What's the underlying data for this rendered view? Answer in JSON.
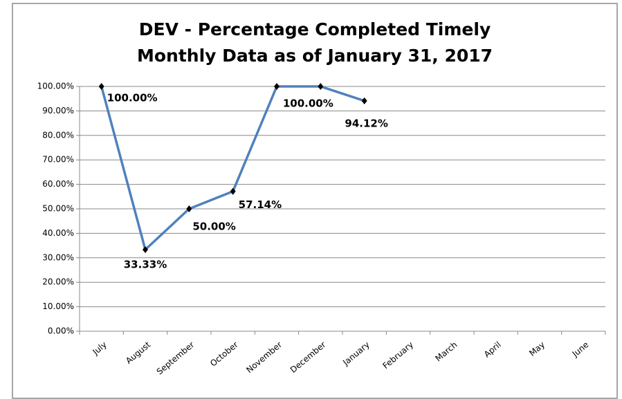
{
  "chart_data": {
    "type": "line",
    "title": "DEV - Percentage Completed Timely",
    "subtitle": "Monthly Data as of January 31, 2017",
    "categories": [
      "July",
      "August",
      "September",
      "October",
      "November",
      "December",
      "January",
      "February",
      "March",
      "April",
      "May",
      "June"
    ],
    "series": [
      {
        "name": "DEV",
        "color": "#4f81bd",
        "values": [
          100,
          33.33,
          50,
          57.14,
          100,
          100,
          94.12,
          null,
          null,
          null,
          null,
          null
        ],
        "value_labels": [
          "100.00%",
          "33.33%",
          "50.00%",
          "57.14%",
          null,
          "100.00%",
          "94.12%",
          null,
          null,
          null,
          null,
          null
        ]
      }
    ],
    "ylim": [
      0,
      100
    ],
    "yticks": [
      {
        "value": 0,
        "label": "0.00%"
      },
      {
        "value": 10,
        "label": "10.00%"
      },
      {
        "value": 20,
        "label": "20.00%"
      },
      {
        "value": 30,
        "label": "30.00%"
      },
      {
        "value": 40,
        "label": "40.00%"
      },
      {
        "value": 50,
        "label": "50.00%"
      },
      {
        "value": 60,
        "label": "60.00%"
      },
      {
        "value": 70,
        "label": "70.00%"
      },
      {
        "value": 80,
        "label": "80.00%"
      },
      {
        "value": 90,
        "label": "90.00%"
      },
      {
        "value": 100,
        "label": "100.00%"
      }
    ],
    "grid": true
  }
}
